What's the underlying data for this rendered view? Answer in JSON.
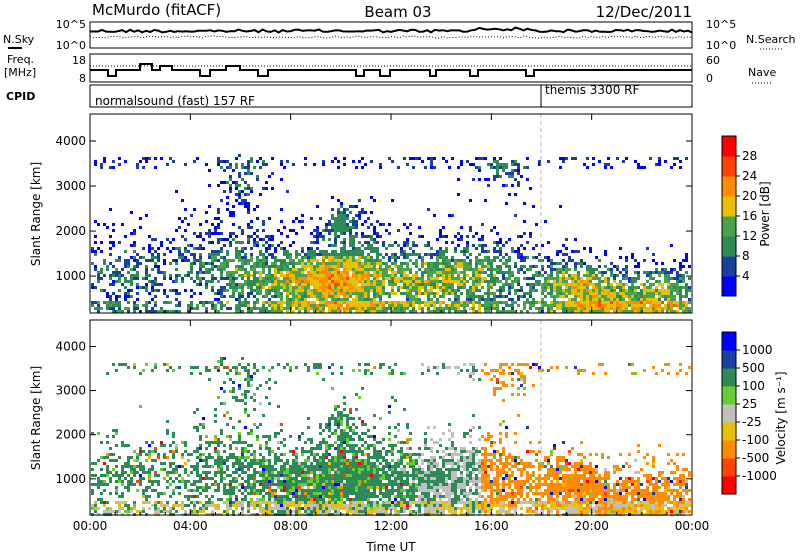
{
  "header": {
    "station": "McMurdo (fitACF)",
    "beam": "Beam 03",
    "date": "12/Dec/2011"
  },
  "noise_panel": {
    "left_label": "N.Sky",
    "right_label": "N.Search",
    "left_ticks": [
      "10^5",
      "10^0"
    ],
    "right_ticks": [
      "10^5",
      "10^0"
    ]
  },
  "freq_panel": {
    "left_label_line1": "Freq.",
    "left_label_line2": "[MHz]",
    "right_label": "Nave",
    "left_ticks": [
      "18",
      "8"
    ],
    "right_ticks": [
      "60",
      "0"
    ]
  },
  "cpid": {
    "label": "CPID",
    "modes": [
      "normalsound (fast) 157 RF",
      "themis 3300 RF"
    ]
  },
  "colors": {
    "power": [
      "#0000ff",
      "#1b3fa0",
      "#2e8b57",
      "#4aa34a",
      "#e8c000",
      "#ff8c00",
      "#ff4500",
      "#ff0000"
    ],
    "velocity": [
      "#ff0000",
      "#ff4500",
      "#ff8c00",
      "#e8c000",
      "#c0c0c0",
      "#66cc33",
      "#2e8b57",
      "#1b3fa0",
      "#0000ff"
    ]
  },
  "chart_data": [
    {
      "type": "heatmap",
      "name": "power",
      "ylabel": "Slant Range [km]",
      "xlabel": "",
      "yticks": [
        1000,
        2000,
        3000,
        4000
      ],
      "ylim": [
        180,
        4600
      ],
      "xlim": [
        0,
        24
      ],
      "colorbar_label": "Power [dB]",
      "colorbar_ticks": [
        "4",
        "8",
        "12",
        "16",
        "20",
        "24",
        "28"
      ],
      "clim": [
        0,
        32
      ]
    },
    {
      "type": "heatmap",
      "name": "velocity",
      "ylabel": "Slant Range [km]",
      "xlabel": "Time UT",
      "xticks": [
        "00:00",
        "04:00",
        "08:00",
        "12:00",
        "16:00",
        "20:00",
        "00:00"
      ],
      "yticks": [
        1000,
        2000,
        3000,
        4000
      ],
      "ylim": [
        180,
        4600
      ],
      "xlim": [
        0,
        24
      ],
      "colorbar_label": "Velocity [m s⁻¹]",
      "colorbar_ticks": [
        "-1000",
        "-500",
        "-100",
        "-25",
        "25",
        "100",
        "500",
        "1000"
      ],
      "clim": [
        -1200,
        1200
      ]
    }
  ]
}
